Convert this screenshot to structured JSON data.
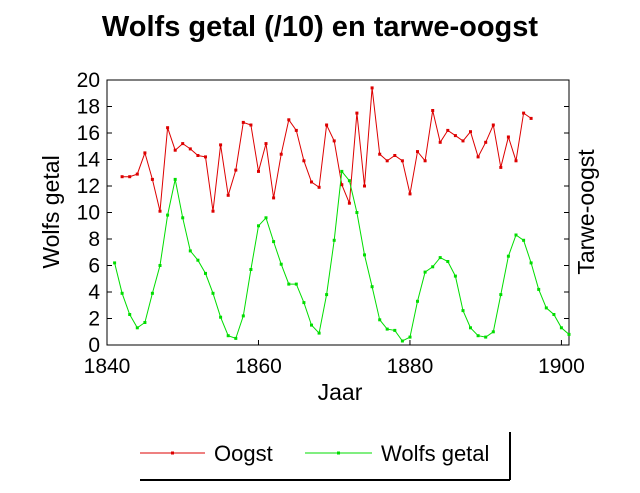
{
  "chart_data": {
    "type": "line",
    "title": "Wolfs getal (/10) en tarwe-oogst",
    "xlabel": "Jaar",
    "ylabel": "Wolfs getal",
    "y2label": "Tarwe-oogst",
    "xlim": [
      1840,
      1901
    ],
    "ylim": [
      0,
      20
    ],
    "xticks": [
      "1840",
      "1860",
      "1880",
      "1900"
    ],
    "yticks": [
      "0",
      "2",
      "4",
      "6",
      "8",
      "10",
      "12",
      "14",
      "16",
      "18",
      "20"
    ],
    "grid": false,
    "legend_position": "bottom",
    "series": [
      {
        "name": "Oogst",
        "color": "#dd0000",
        "x": [
          1842,
          1843,
          1844,
          1845,
          1846,
          1847,
          1848,
          1849,
          1850,
          1851,
          1852,
          1853,
          1854,
          1855,
          1856,
          1857,
          1858,
          1859,
          1860,
          1861,
          1862,
          1863,
          1864,
          1865,
          1866,
          1867,
          1868,
          1869,
          1870,
          1871,
          1872,
          1873,
          1874,
          1875,
          1876,
          1877,
          1878,
          1879,
          1880,
          1881,
          1882,
          1883,
          1884,
          1885,
          1886,
          1887,
          1888,
          1889,
          1890,
          1891,
          1892,
          1893,
          1894,
          1895,
          1896
        ],
        "y": [
          12.7,
          12.7,
          12.9,
          14.5,
          12.5,
          10.1,
          16.4,
          14.7,
          15.2,
          14.8,
          14.3,
          14.2,
          10.1,
          15.1,
          11.3,
          13.2,
          16.8,
          16.6,
          13.1,
          15.2,
          11.1,
          14.4,
          17.0,
          16.2,
          13.9,
          12.3,
          11.9,
          16.6,
          15.4,
          12.1,
          10.7,
          17.5,
          12.0,
          19.4,
          14.4,
          13.9,
          14.3,
          13.9,
          11.4,
          14.6,
          13.9,
          17.7,
          15.3,
          16.2,
          15.8,
          15.4,
          16.1,
          14.2,
          15.3,
          16.6,
          13.4,
          15.7,
          13.9,
          17.5,
          17.1
        ]
      },
      {
        "name": "Wolfs getal",
        "color": "#00dd00",
        "x": [
          1841,
          1842,
          1843,
          1844,
          1845,
          1846,
          1847,
          1848,
          1849,
          1850,
          1851,
          1852,
          1853,
          1854,
          1855,
          1856,
          1857,
          1858,
          1859,
          1860,
          1861,
          1862,
          1863,
          1864,
          1865,
          1866,
          1867,
          1868,
          1869,
          1870,
          1871,
          1872,
          1873,
          1874,
          1875,
          1876,
          1877,
          1878,
          1879,
          1880,
          1881,
          1882,
          1883,
          1884,
          1885,
          1886,
          1887,
          1888,
          1889,
          1890,
          1891,
          1892,
          1893,
          1894,
          1895,
          1896,
          1897,
          1898,
          1899,
          1900,
          1901
        ],
        "y": [
          6.2,
          3.9,
          2.3,
          1.3,
          1.7,
          3.9,
          6.0,
          9.8,
          12.5,
          9.6,
          7.1,
          6.4,
          5.4,
          3.9,
          2.1,
          0.7,
          0.5,
          2.2,
          5.7,
          9.0,
          9.6,
          7.8,
          6.1,
          4.6,
          4.6,
          3.2,
          1.5,
          0.9,
          3.8,
          7.9,
          13.1,
          12.4,
          10.0,
          6.8,
          4.4,
          1.9,
          1.2,
          1.1,
          0.3,
          0.6,
          3.3,
          5.5,
          5.9,
          6.6,
          6.3,
          5.2,
          2.6,
          1.3,
          0.7,
          0.6,
          1.0,
          3.8,
          6.7,
          8.3,
          7.9,
          6.2,
          4.2,
          2.8,
          2.3,
          1.3,
          0.8
        ]
      }
    ]
  }
}
